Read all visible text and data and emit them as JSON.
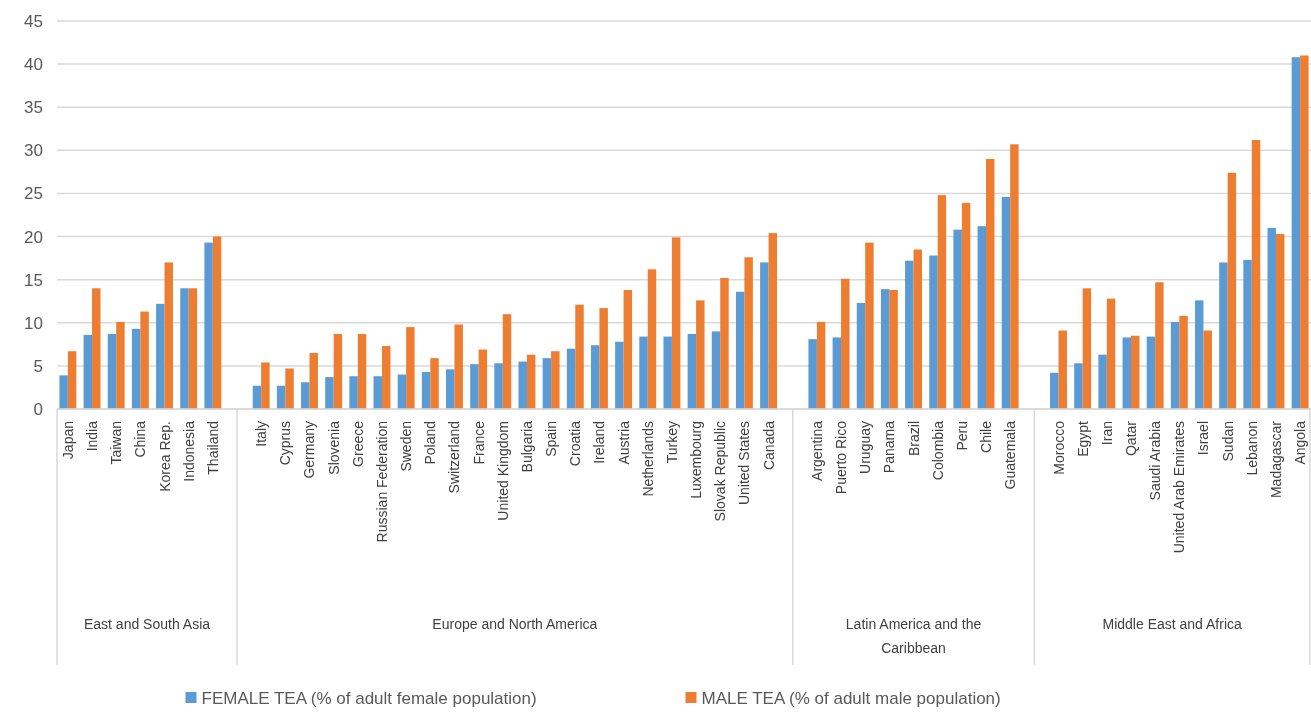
{
  "chart_data": {
    "type": "bar",
    "categories": [
      "Japan",
      "India",
      "Taiwan",
      "China",
      "Korea Rep.",
      "Indonesia",
      "Thailand",
      null,
      "Italy",
      "Cyprus",
      "Germany",
      "Slovenia",
      "Greece",
      "Russian Federation",
      "Sweden",
      "Poland",
      "Switzerland",
      "France",
      "United Kingdom",
      "Bulgaria",
      "Spain",
      "Croatia",
      "Ireland",
      "Austria",
      "Netherlands",
      "Turkey",
      "Luxembourg",
      "Slovak Republic",
      "United States",
      "Canada",
      null,
      "Argentina",
      "Puerto Rico",
      "Uruguay",
      "Panama",
      "Brazil",
      "Colombia",
      "Peru",
      "Chile",
      "Guatemala",
      null,
      "Morocco",
      "Egypt",
      "Iran",
      "Qatar",
      "Saudi Arabia",
      "United Arab Emirates",
      "Israel",
      "Sudan",
      "Lebanon",
      "Madagascar",
      "Angola"
    ],
    "series": [
      {
        "name": "FEMALE TEA (% of adult female population)",
        "color": "#5b9bd5",
        "values": [
          3.9,
          8.6,
          8.7,
          9.3,
          12.2,
          14,
          19.3,
          null,
          2.7,
          2.7,
          3.1,
          3.7,
          3.8,
          3.8,
          4.0,
          4.3,
          4.6,
          5.2,
          5.3,
          5.5,
          5.9,
          7.0,
          7.4,
          7.8,
          8.4,
          8.4,
          8.7,
          9.0,
          13.6,
          17,
          null,
          8.1,
          8.3,
          12.3,
          13.9,
          17.2,
          17.8,
          20.8,
          21.2,
          24.6,
          null,
          4.2,
          5.3,
          6.3,
          8.3,
          8.4,
          10.1,
          12.6,
          17,
          17.3,
          21,
          40.8
        ]
      },
      {
        "name": "MALE TEA (% of adult male population)",
        "color": "#ed7d31",
        "values": [
          6.7,
          14,
          10.1,
          11.3,
          17,
          14,
          20,
          null,
          5.4,
          4.7,
          6.5,
          8.7,
          8.7,
          7.3,
          9.5,
          5.9,
          9.8,
          6.9,
          11,
          6.3,
          6.7,
          12.1,
          11.7,
          13.8,
          16.2,
          19.9,
          12.6,
          15.2,
          17.6,
          20.4,
          null,
          10.1,
          15.1,
          19.3,
          13.8,
          18.5,
          24.8,
          23.9,
          29,
          30.7,
          null,
          9.1,
          14,
          12.8,
          8.5,
          14.7,
          10.8,
          9.1,
          27.4,
          31.2,
          20.3,
          41
        ]
      }
    ],
    "annotations": [
      "East and South Asia",
      "Europe and North America",
      "Latin America and the Caribbean",
      "Middle East and Africa"
    ],
    "ylim": [
      0,
      45
    ],
    "yticks": [
      0,
      5,
      10,
      15,
      20,
      25,
      30,
      35,
      40,
      45
    ],
    "grid": "y",
    "legend": "bottom"
  }
}
